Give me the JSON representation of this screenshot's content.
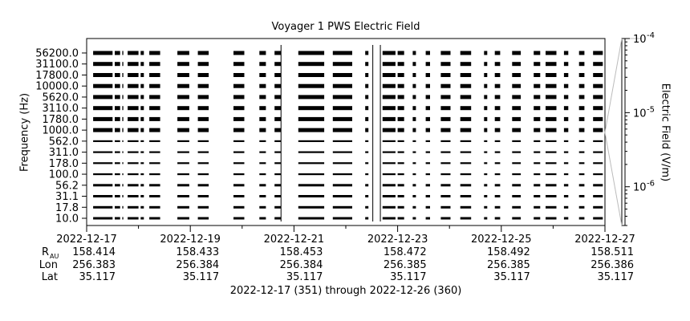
{
  "chart_data": {
    "type": "heatmap",
    "title": "Voyager 1 PWS Electric Field",
    "ylabel": "Frequency (Hz)",
    "colorbar_label": "Electric Field (V/m)",
    "xlim": [
      "2022-12-17",
      "2022-12-27"
    ],
    "frequency_channels": [
      "56200.0",
      "31100.0",
      "17800.0",
      "10000.0",
      "5620.0",
      "3110.0",
      "1780.0",
      "1000.0",
      "562.0",
      "311.0",
      "178.0",
      "100.0",
      "56.2",
      "31.1",
      "17.8",
      "10.0"
    ],
    "x_ticks": [
      "2022-12-17",
      "2022-12-19",
      "2022-12-21",
      "2022-12-23",
      "2022-12-25",
      "2022-12-27"
    ],
    "colorbar": {
      "scale": "log",
      "range": [
        3e-07,
        0.0001
      ],
      "ticks": [
        {
          "value": 0.0001,
          "base": "10",
          "exp": "-4"
        },
        {
          "value": 1e-05,
          "base": "10",
          "exp": "-5"
        },
        {
          "value": 1e-06,
          "base": "10",
          "exp": "-6"
        }
      ]
    },
    "data_gaps_note": "",
    "data_segments": [
      [
        "2022-12-17T03:00",
        "2022-12-17T12:00"
      ],
      [
        "2022-12-17T13:00",
        "2022-12-17T15:30"
      ],
      [
        "2022-12-17T16:30",
        "2022-12-17T17:00"
      ],
      [
        "2022-12-17T19:00",
        "2022-12-18T00:00"
      ],
      [
        "2022-12-18T01:00",
        "2022-12-18T02:30"
      ],
      [
        "2022-12-18T05:00",
        "2022-12-18T10:00"
      ],
      [
        "2022-12-18T18:00",
        "2022-12-18T23:30"
      ],
      [
        "2022-12-19T03:30",
        "2022-12-19T08:30"
      ],
      [
        "2022-12-19T20:00",
        "2022-12-20T01:00"
      ],
      [
        "2022-12-20T08:00",
        "2022-12-20T11:00"
      ],
      [
        "2022-12-20T15:00",
        "2022-12-20T18:00"
      ],
      [
        "2022-12-21T02:00",
        "2022-12-21T14:00"
      ],
      [
        "2022-12-21T18:00",
        "2022-12-22T03:00"
      ],
      [
        "2022-12-22T09:00",
        "2022-12-22T10:30"
      ],
      [
        "2022-12-22T17:00",
        "2022-12-22T23:00"
      ],
      [
        "2022-12-23T00:00",
        "2022-12-23T03:00"
      ],
      [
        "2022-12-23T07:00",
        "2022-12-23T08:30"
      ],
      [
        "2022-12-23T13:00",
        "2022-12-23T15:00"
      ],
      [
        "2022-12-23T20:00",
        "2022-12-24T00:30"
      ],
      [
        "2022-12-24T05:00",
        "2022-12-24T10:00"
      ],
      [
        "2022-12-24T16:00",
        "2022-12-24T17:30"
      ],
      [
        "2022-12-24T21:00",
        "2022-12-24T23:30"
      ],
      [
        "2022-12-25T05:00",
        "2022-12-25T09:00"
      ],
      [
        "2022-12-25T15:00",
        "2022-12-25T18:00"
      ],
      [
        "2022-12-25T20:30",
        "2022-12-26T01:30"
      ],
      [
        "2022-12-26T05:00",
        "2022-12-26T07:00"
      ],
      [
        "2022-12-26T12:00",
        "2022-12-26T14:30"
      ],
      [
        "2022-12-26T18:30",
        "2022-12-26T23:00"
      ]
    ],
    "vertical_lines": [
      "2022-12-20T18:00",
      "2022-12-22T12:30",
      "2022-12-22T16:00"
    ],
    "ephemeris": {
      "rows": [
        {
          "label": "R",
          "subscript": "AU",
          "values": [
            "158.414",
            "158.433",
            "158.453",
            "158.472",
            "158.492",
            "158.511"
          ]
        },
        {
          "label": "Lon",
          "subscript": "",
          "values": [
            "256.383",
            "256.384",
            "256.384",
            "256.385",
            "256.385",
            "256.386"
          ]
        },
        {
          "label": "Lat",
          "subscript": "",
          "values": [
            "35.117",
            "35.117",
            "35.117",
            "35.117",
            "35.117",
            "35.117"
          ]
        }
      ]
    },
    "footer": "2022-12-17 (351) through 2022-12-26 (360)"
  }
}
